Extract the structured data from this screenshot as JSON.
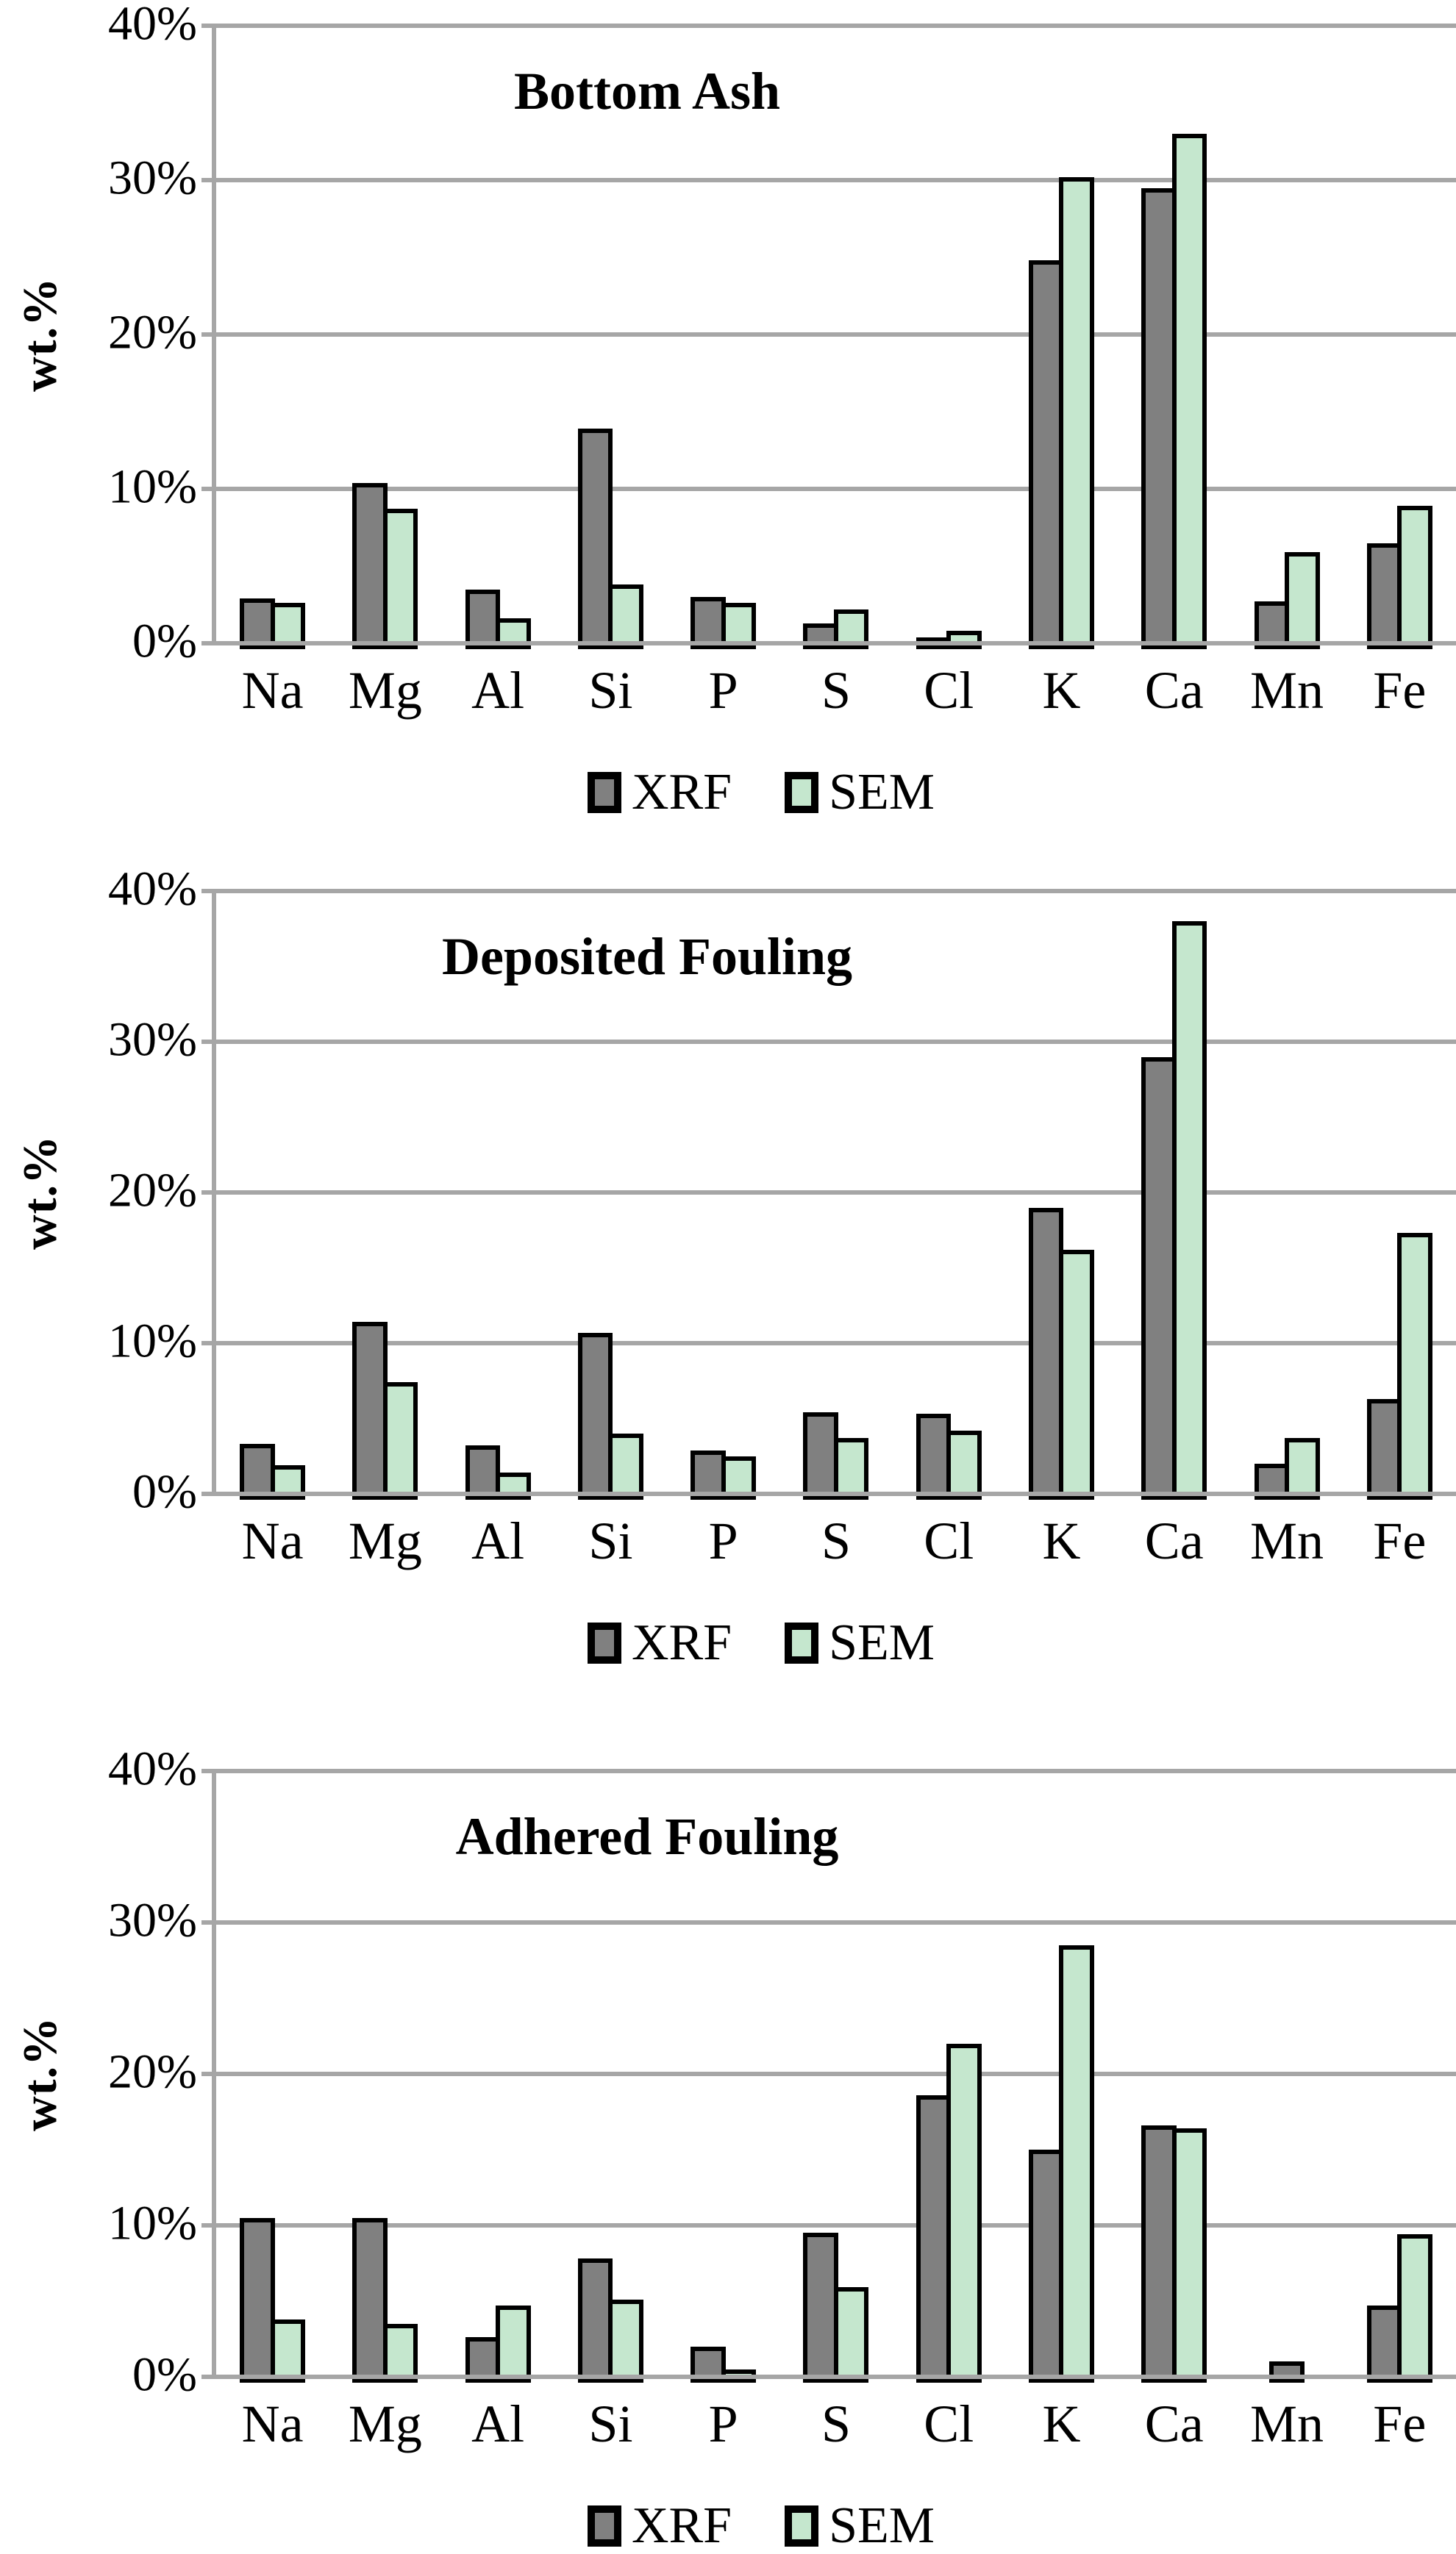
{
  "page": {
    "background": "#ffffff"
  },
  "colors": {
    "xrf_fill": "#808080",
    "sem_fill": "#c5e7ce",
    "grid": "#a6a6a6",
    "bar_border": "#000000",
    "text": "#000000"
  },
  "legend": {
    "items": [
      {
        "label": "XRF",
        "color_key": "xrf_fill"
      },
      {
        "label": "SEM",
        "color_key": "sem_fill"
      }
    ]
  },
  "axis": {
    "ylabel": "wt.%",
    "yticks_labels": [
      "40%",
      "30%",
      "20%",
      "10%",
      "0%"
    ],
    "ymin": 0,
    "ymax": 40,
    "step": 10
  },
  "chart_data": [
    {
      "type": "bar",
      "title": "Bottom Ash",
      "ylabel": "wt.%",
      "ylim": [
        0,
        40
      ],
      "grid": true,
      "legend_position": "bottom",
      "categories": [
        "Na",
        "Mg",
        "Al",
        "Si",
        "P",
        "S",
        "Cl",
        "K",
        "Ca",
        "Mn",
        "Fe"
      ],
      "series": [
        {
          "name": "XRF",
          "values": [
            2.9,
            10.4,
            3.5,
            13.9,
            3.0,
            1.3,
            0.4,
            24.8,
            29.5,
            2.7,
            6.5
          ]
        },
        {
          "name": "SEM",
          "values": [
            2.6,
            8.7,
            1.6,
            3.8,
            2.6,
            2.2,
            0.8,
            30.2,
            33.0,
            5.9,
            8.9
          ]
        }
      ]
    },
    {
      "type": "bar",
      "title": "Deposited Fouling",
      "ylabel": "wt.%",
      "ylim": [
        0,
        40
      ],
      "grid": true,
      "legend_position": "bottom",
      "categories": [
        "Na",
        "Mg",
        "Al",
        "Si",
        "P",
        "S",
        "Cl",
        "K",
        "Ca",
        "Mn",
        "Fe"
      ],
      "series": [
        {
          "name": "XRF",
          "values": [
            3.3,
            11.4,
            3.2,
            10.7,
            2.9,
            5.4,
            5.3,
            19.0,
            29.0,
            2.0,
            6.3
          ]
        },
        {
          "name": "SEM",
          "values": [
            1.9,
            7.4,
            1.4,
            4.0,
            2.5,
            3.7,
            4.2,
            16.2,
            38.0,
            3.7,
            17.3
          ]
        }
      ]
    },
    {
      "type": "bar",
      "title": "Adhered Fouling",
      "ylabel": "wt.%",
      "ylim": [
        0,
        40
      ],
      "grid": true,
      "legend_position": "bottom",
      "categories": [
        "Na",
        "Mg",
        "Al",
        "Si",
        "P",
        "S",
        "Cl",
        "K",
        "Ca",
        "Mn",
        "Fe"
      ],
      "series": [
        {
          "name": "XRF",
          "values": [
            10.5,
            10.5,
            2.6,
            7.8,
            2.0,
            9.5,
            18.6,
            15.0,
            16.6,
            1.0,
            4.7
          ]
        },
        {
          "name": "SEM",
          "values": [
            3.8,
            3.5,
            4.7,
            5.1,
            0.5,
            5.9,
            22.0,
            28.5,
            16.4,
            0,
            9.4
          ]
        }
      ]
    }
  ]
}
